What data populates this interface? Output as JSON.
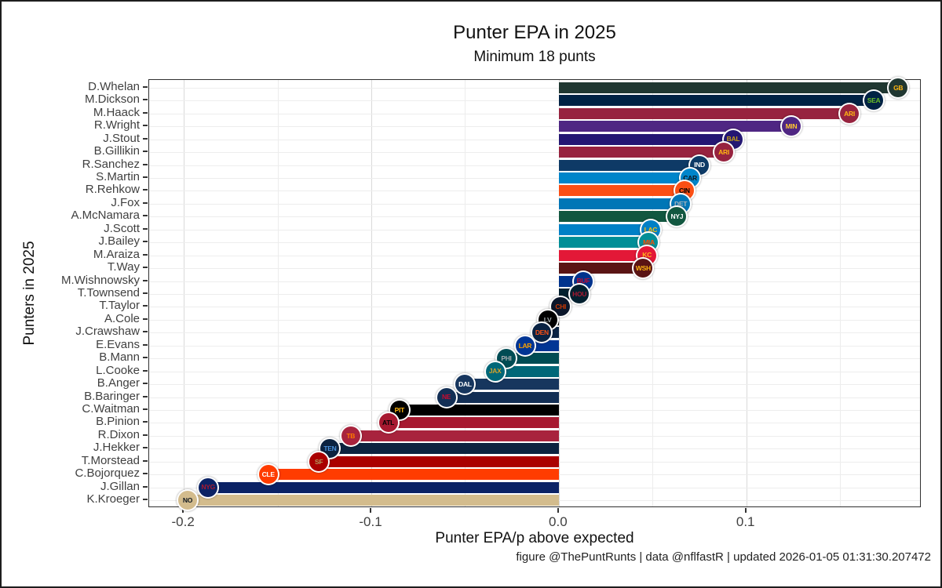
{
  "chart_data": {
    "type": "bar",
    "orientation": "horizontal",
    "title": "Punter EPA in 2025",
    "subtitle": "Minimum 18 punts",
    "xlabel": "Punter EPA/p above expected",
    "ylabel": "Punters in 2025",
    "caption": "figure @ThePuntRunts | data @nflfastR | updated 2026-01-05 01:31:30.207472",
    "grid": "on",
    "legend": "none",
    "xlim": [
      -0.2185,
      0.1935
    ],
    "x_major_ticks": [
      {
        "value": -0.2,
        "label": "-0.2"
      },
      {
        "value": -0.1,
        "label": "-0.1"
      },
      {
        "value": 0.0,
        "label": "0.0"
      },
      {
        "value": 0.1,
        "label": "0.1"
      }
    ],
    "x_minor_gridlines": [
      -0.15,
      -0.05,
      0.05,
      0.15
    ],
    "bars": [
      {
        "punter": "D.Whelan",
        "team": "Green Bay Packers",
        "abbr": "GB",
        "value": 0.181,
        "color": "#203731",
        "secondary": "#FFB612"
      },
      {
        "punter": "M.Dickson",
        "team": "Seattle Seahawks",
        "abbr": "SEA",
        "value": 0.168,
        "color": "#002244",
        "secondary": "#69BE28"
      },
      {
        "punter": "M.Haack",
        "team": "Arizona Cardinals",
        "abbr": "ARI",
        "value": 0.155,
        "color": "#97233F",
        "secondary": "#FFB612"
      },
      {
        "punter": "R.Wright",
        "team": "Minnesota Vikings",
        "abbr": "MIN",
        "value": 0.124,
        "color": "#4F2683",
        "secondary": "#FFC62F"
      },
      {
        "punter": "J.Stout",
        "team": "Baltimore Ravens",
        "abbr": "BAL",
        "value": 0.093,
        "color": "#241773",
        "secondary": "#C8A014"
      },
      {
        "punter": "B.Gillikin",
        "team": "Arizona Cardinals",
        "abbr": "ARI",
        "value": 0.088,
        "color": "#97233F",
        "secondary": "#FFB612"
      },
      {
        "punter": "R.Sanchez",
        "team": "Indianapolis Colts",
        "abbr": "IND",
        "value": 0.075,
        "color": "#0E3A66",
        "secondary": "#FFFFFF"
      },
      {
        "punter": "S.Martin",
        "team": "Carolina Panthers",
        "abbr": "CAR",
        "value": 0.07,
        "color": "#0085CA",
        "secondary": "#101820"
      },
      {
        "punter": "R.Rehkow",
        "team": "Cincinnati Bengals",
        "abbr": "CIN",
        "value": 0.067,
        "color": "#FB4F14",
        "secondary": "#000000"
      },
      {
        "punter": "J.Fox",
        "team": "Detroit Lions",
        "abbr": "DET",
        "value": 0.065,
        "color": "#0076B6",
        "secondary": "#B0B7BC"
      },
      {
        "punter": "A.McNamara",
        "team": "New York Jets",
        "abbr": "NYJ",
        "value": 0.063,
        "color": "#125740",
        "secondary": "#FFFFFF"
      },
      {
        "punter": "J.Scott",
        "team": "Los Angeles Chargers",
        "abbr": "LAC",
        "value": 0.049,
        "color": "#0080C6",
        "secondary": "#FFC20E"
      },
      {
        "punter": "J.Bailey",
        "team": "Miami Dolphins",
        "abbr": "MIA",
        "value": 0.048,
        "color": "#008E97",
        "secondary": "#FC4C02"
      },
      {
        "punter": "M.Araiza",
        "team": "Kansas City Chiefs",
        "abbr": "KC",
        "value": 0.047,
        "color": "#E31837",
        "secondary": "#FFB81C"
      },
      {
        "punter": "T.Way",
        "team": "Washington Commanders",
        "abbr": "WSH",
        "value": 0.045,
        "color": "#5A1414",
        "secondary": "#FFB612"
      },
      {
        "punter": "M.Wishnowsky",
        "team": "Buffalo Bills",
        "abbr": "BUF",
        "value": 0.013,
        "color": "#00338D",
        "secondary": "#C60C30"
      },
      {
        "punter": "T.Townsend",
        "team": "Houston Texans",
        "abbr": "HOU",
        "value": 0.011,
        "color": "#03202F",
        "secondary": "#A71930"
      },
      {
        "punter": "T.Taylor",
        "team": "Chicago Bears",
        "abbr": "CHI",
        "value": 0.001,
        "color": "#0B162A",
        "secondary": "#C83803"
      },
      {
        "punter": "A.Cole",
        "team": "Las Vegas Raiders",
        "abbr": "LV",
        "value": -0.006,
        "color": "#000000",
        "secondary": "#A5ACAF"
      },
      {
        "punter": "J.Crawshaw",
        "team": "Denver Broncos",
        "abbr": "DEN",
        "value": -0.009,
        "color": "#0A2343",
        "secondary": "#FB4F14"
      },
      {
        "punter": "E.Evans",
        "team": "Los Angeles Rams",
        "abbr": "LAR",
        "value": -0.018,
        "color": "#003594",
        "secondary": "#FFA300"
      },
      {
        "punter": "B.Mann",
        "team": "Philadelphia Eagles",
        "abbr": "PHI",
        "value": -0.028,
        "color": "#004C54",
        "secondary": "#A5ACAF"
      },
      {
        "punter": "L.Cooke",
        "team": "Jacksonville Jaguars",
        "abbr": "JAX",
        "value": -0.034,
        "color": "#006778",
        "secondary": "#D7A22A"
      },
      {
        "punter": "B.Anger",
        "team": "Dallas Cowboys",
        "abbr": "DAL",
        "value": -0.05,
        "color": "#17365E",
        "secondary": "#FFFFFF"
      },
      {
        "punter": "B.Baringer",
        "team": "New England Patriots",
        "abbr": "NE",
        "value": -0.06,
        "color": "#132F55",
        "secondary": "#C60C30"
      },
      {
        "punter": "C.Waitman",
        "team": "Pittsburgh Steelers",
        "abbr": "PIT",
        "value": -0.085,
        "color": "#000000",
        "secondary": "#FFB612"
      },
      {
        "punter": "B.Pinion",
        "team": "Atlanta Falcons",
        "abbr": "ATL",
        "value": -0.091,
        "color": "#A71930",
        "secondary": "#000000"
      },
      {
        "punter": "R.Dixon",
        "team": "Tampa Bay Buccaneers",
        "abbr": "TB",
        "value": -0.111,
        "color": "#A8233D",
        "secondary": "#FF7900"
      },
      {
        "punter": "J.Hekker",
        "team": "Tennessee Titans",
        "abbr": "TEN",
        "value": -0.122,
        "color": "#0C2340",
        "secondary": "#4B92DB"
      },
      {
        "punter": "T.Morstead",
        "team": "San Francisco 49ers",
        "abbr": "SF",
        "value": -0.128,
        "color": "#AA0000",
        "secondary": "#B3995D"
      },
      {
        "punter": "C.Bojorquez",
        "team": "Cleveland Browns",
        "abbr": "CLE",
        "value": -0.155,
        "color": "#FF3C00",
        "secondary": "#FFFFFF"
      },
      {
        "punter": "J.Gillan",
        "team": "New York Giants",
        "abbr": "NYG",
        "value": -0.187,
        "color": "#0B2265",
        "secondary": "#A71930"
      },
      {
        "punter": "K.Kroeger",
        "team": "New Orleans Saints",
        "abbr": "NO",
        "value": -0.198,
        "color": "#D3BC8D",
        "secondary": "#101820"
      }
    ]
  },
  "colors": {
    "background": "#ffffff",
    "panel_border": "#2f2f2f",
    "grid_major": "#d9d9d9",
    "grid_minor": "#ececec",
    "grid_row": "#ededed",
    "axis_text": "#404040",
    "title_text": "#111111"
  }
}
